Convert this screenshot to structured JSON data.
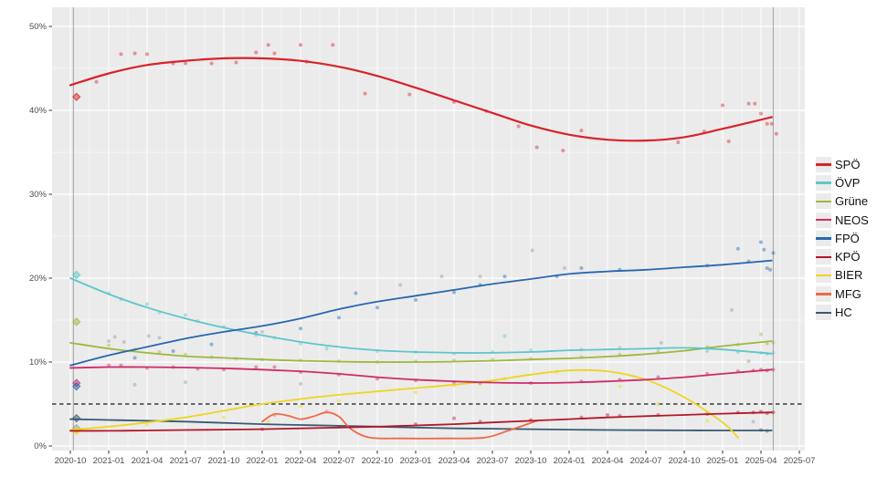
{
  "chart_data": {
    "type": "scatter-with-loess-trend",
    "title": "",
    "y_tick_labels": [
      "0%",
      "10%",
      "20%",
      "30%",
      "40%",
      "50%"
    ],
    "y_tick_values": [
      0,
      10,
      20,
      30,
      40,
      50
    ],
    "y_minor_values": [
      5,
      15,
      25,
      35,
      45
    ],
    "ylim": [
      -0.5,
      52.3
    ],
    "x_tick_labels": [
      "2020-10",
      "2021-01",
      "2021-04",
      "2021-07",
      "2021-10",
      "2022-01",
      "2022-04",
      "2022-07",
      "2022-10",
      "2023-01",
      "2023-04",
      "2023-07",
      "2023-10",
      "2024-01",
      "2024-04",
      "2024-07",
      "2024-10",
      "2025-01",
      "2025-04",
      "2025-07"
    ],
    "xlim_years": [
      2020.63,
      2025.54
    ],
    "threshold_line": {
      "value": 5,
      "style": "dashed",
      "color": "#3a3a3a"
    },
    "event_vlines": {
      "color": "#a8a8a8",
      "x_years": [
        2020.77,
        2025.33
      ]
    },
    "panel_background": "#ebebeb",
    "gridline_color": "#ffffff",
    "trend_x_years": [
      2020.75,
      2021.0,
      2021.25,
      2021.5,
      2021.75,
      2022.0,
      2022.25,
      2022.5,
      2022.75,
      2023.0,
      2023.25,
      2023.5,
      2023.75,
      2024.0,
      2024.25,
      2024.5,
      2024.75,
      2025.0,
      2025.32
    ],
    "series": [
      {
        "name": "SPÖ",
        "color": "#d8232a",
        "line_width": 2.2,
        "trend_y": [
          43.0,
          44.4,
          45.4,
          45.9,
          46.2,
          46.2,
          45.9,
          45.2,
          44.1,
          42.7,
          41.2,
          39.7,
          38.2,
          37.1,
          36.5,
          36.4,
          36.8,
          37.8,
          39.2
        ],
        "diamonds": [
          [
            2020.79,
            41.6
          ]
        ],
        "points": [
          [
            2020.92,
            43.4
          ],
          [
            2021.08,
            46.7
          ],
          [
            2021.17,
            46.8
          ],
          [
            2021.25,
            46.7
          ],
          [
            2021.42,
            45.6
          ],
          [
            2021.5,
            45.6
          ],
          [
            2021.67,
            45.6
          ],
          [
            2021.83,
            45.7
          ],
          [
            2021.96,
            46.9
          ],
          [
            2022.04,
            47.8
          ],
          [
            2022.08,
            46.8
          ],
          [
            2022.25,
            47.8
          ],
          [
            2022.29,
            45.8
          ],
          [
            2022.46,
            47.8
          ],
          [
            2022.67,
            42.0
          ],
          [
            2022.96,
            41.9
          ],
          [
            2023.25,
            41.0
          ],
          [
            2023.46,
            39.9
          ],
          [
            2023.67,
            38.1
          ],
          [
            2023.79,
            35.6
          ],
          [
            2023.96,
            35.2
          ],
          [
            2024.08,
            37.6
          ],
          [
            2024.71,
            36.2
          ],
          [
            2024.88,
            37.5
          ],
          [
            2025.0,
            40.6
          ],
          [
            2025.04,
            36.3
          ],
          [
            2025.17,
            40.8
          ],
          [
            2025.21,
            40.8
          ],
          [
            2025.25,
            39.6
          ],
          [
            2025.29,
            38.4
          ],
          [
            2025.32,
            38.4
          ],
          [
            2025.35,
            37.2
          ]
        ]
      },
      {
        "name": "ÖVP",
        "color": "#5fc6c9",
        "line_width": 1.8,
        "trend_y": [
          20.0,
          18.1,
          16.5,
          15.2,
          14.1,
          13.2,
          12.4,
          11.8,
          11.4,
          11.2,
          11.1,
          11.1,
          11.2,
          11.4,
          11.5,
          11.6,
          11.7,
          11.5,
          11.0
        ],
        "diamonds": [
          [
            2020.79,
            20.4
          ]
        ],
        "points": [
          [
            2021.0,
            18.2
          ],
          [
            2021.08,
            17.5
          ],
          [
            2021.25,
            16.9
          ],
          [
            2021.33,
            15.9
          ],
          [
            2021.5,
            15.6
          ],
          [
            2021.58,
            14.9
          ],
          [
            2021.75,
            14.2
          ],
          [
            2021.96,
            13.2
          ],
          [
            2022.08,
            12.9
          ],
          [
            2022.25,
            12.2
          ],
          [
            2022.42,
            11.6
          ],
          [
            2022.75,
            11.3
          ],
          [
            2023.0,
            11.2
          ],
          [
            2023.25,
            11.0
          ],
          [
            2023.5,
            11.2
          ],
          [
            2023.58,
            13.1
          ],
          [
            2023.75,
            11.4
          ],
          [
            2024.08,
            11.5
          ],
          [
            2024.33,
            11.7
          ],
          [
            2024.58,
            11.6
          ],
          [
            2024.9,
            11.3
          ],
          [
            2025.1,
            11.2
          ],
          [
            2025.25,
            11.1
          ],
          [
            2025.29,
            11.0
          ],
          [
            2025.33,
            11.1
          ]
        ]
      },
      {
        "name": "Grüne",
        "color": "#9fb83f",
        "line_width": 1.8,
        "trend_y": [
          12.3,
          11.6,
          11.1,
          10.7,
          10.5,
          10.3,
          10.15,
          10.05,
          10.0,
          10.0,
          10.05,
          10.15,
          10.3,
          10.45,
          10.65,
          10.95,
          11.35,
          11.9,
          12.5
        ],
        "diamonds": [
          [
            2020.79,
            14.8
          ]
        ],
        "points": [
          [
            2021.0,
            12.0
          ],
          [
            2021.17,
            11.5
          ],
          [
            2021.33,
            11.2
          ],
          [
            2021.5,
            10.9
          ],
          [
            2021.67,
            10.6
          ],
          [
            2021.83,
            10.4
          ],
          [
            2022.0,
            10.3
          ],
          [
            2022.25,
            10.2
          ],
          [
            2022.5,
            10.1
          ],
          [
            2022.75,
            10.0
          ],
          [
            2023.0,
            10.1
          ],
          [
            2023.25,
            10.2
          ],
          [
            2023.5,
            10.3
          ],
          [
            2023.75,
            10.4
          ],
          [
            2024.08,
            10.6
          ],
          [
            2024.33,
            10.9
          ],
          [
            2024.58,
            11.2
          ],
          [
            2024.9,
            11.8
          ],
          [
            2025.1,
            12.1
          ],
          [
            2025.25,
            13.3
          ],
          [
            2025.29,
            12.2
          ],
          [
            2025.33,
            12.3
          ]
        ]
      },
      {
        "name": "NEOS",
        "color": "#cf2b68",
        "line_width": 1.8,
        "trend_y": [
          9.3,
          9.4,
          9.4,
          9.35,
          9.25,
          9.1,
          8.9,
          8.6,
          8.2,
          7.9,
          7.7,
          7.55,
          7.5,
          7.55,
          7.7,
          7.9,
          8.2,
          8.6,
          9.1
        ],
        "diamonds": [
          [
            2020.79,
            7.5
          ]
        ],
        "points": [
          [
            2021.0,
            9.6
          ],
          [
            2021.08,
            9.6
          ],
          [
            2021.25,
            9.3
          ],
          [
            2021.42,
            9.4
          ],
          [
            2021.58,
            9.2
          ],
          [
            2021.75,
            9.1
          ],
          [
            2021.96,
            9.4
          ],
          [
            2022.08,
            9.4
          ],
          [
            2022.25,
            8.8
          ],
          [
            2022.5,
            8.5
          ],
          [
            2022.75,
            8.0
          ],
          [
            2023.0,
            7.8
          ],
          [
            2023.25,
            7.6
          ],
          [
            2023.42,
            7.5
          ],
          [
            2023.75,
            7.5
          ],
          [
            2024.08,
            7.7
          ],
          [
            2024.33,
            7.9
          ],
          [
            2024.58,
            8.2
          ],
          [
            2024.9,
            8.6
          ],
          [
            2025.1,
            8.9
          ],
          [
            2025.2,
            9.0
          ],
          [
            2025.25,
            9.1
          ],
          [
            2025.29,
            9.0
          ],
          [
            2025.33,
            9.1
          ]
        ]
      },
      {
        "name": "FPÖ",
        "color": "#2867ae",
        "line_width": 1.8,
        "trend_y": [
          9.6,
          10.8,
          11.8,
          12.8,
          13.6,
          14.3,
          15.2,
          16.3,
          17.2,
          17.9,
          18.6,
          19.3,
          19.9,
          20.5,
          20.8,
          21.0,
          21.3,
          21.6,
          22.1
        ],
        "diamonds": [
          [
            2020.79,
            7.1
          ]
        ],
        "points": [
          [
            2021.17,
            10.5
          ],
          [
            2021.42,
            11.3
          ],
          [
            2021.67,
            12.1
          ],
          [
            2021.96,
            13.5
          ],
          [
            2022.25,
            14.0
          ],
          [
            2022.5,
            15.3
          ],
          [
            2022.61,
            18.2
          ],
          [
            2022.75,
            16.5
          ],
          [
            2023.0,
            17.4
          ],
          [
            2023.25,
            18.3
          ],
          [
            2023.42,
            19.2
          ],
          [
            2023.58,
            20.2
          ],
          [
            2023.92,
            20.2
          ],
          [
            2024.08,
            21.2
          ],
          [
            2024.33,
            21.0
          ],
          [
            2024.9,
            21.5
          ],
          [
            2025.1,
            23.5
          ],
          [
            2025.17,
            22.0
          ],
          [
            2025.25,
            24.3
          ],
          [
            2025.27,
            23.4
          ],
          [
            2025.29,
            21.2
          ],
          [
            2025.31,
            21.0
          ],
          [
            2025.33,
            23.0
          ]
        ]
      },
      {
        "name": "KPÖ",
        "color": "#b2182b",
        "line_width": 1.8,
        "trend_y": [
          1.8,
          1.8,
          1.85,
          1.9,
          1.95,
          2.0,
          2.1,
          2.2,
          2.3,
          2.45,
          2.6,
          2.8,
          3.0,
          3.2,
          3.4,
          3.55,
          3.7,
          3.85,
          4.0
        ],
        "diamonds": [],
        "points": [
          [
            2022.0,
            2.0
          ],
          [
            2022.5,
            2.3
          ],
          [
            2023.0,
            2.6
          ],
          [
            2023.25,
            3.3
          ],
          [
            2023.42,
            2.9
          ],
          [
            2023.75,
            3.1
          ],
          [
            2024.08,
            3.4
          ],
          [
            2024.25,
            3.7
          ],
          [
            2024.33,
            3.6
          ],
          [
            2024.58,
            3.7
          ],
          [
            2024.9,
            3.8
          ],
          [
            2025.1,
            4.0
          ],
          [
            2025.2,
            4.0
          ],
          [
            2025.25,
            4.1
          ],
          [
            2025.29,
            3.9
          ],
          [
            2025.33,
            4.0
          ]
        ]
      },
      {
        "name": "BIER",
        "color": "#eed51e",
        "line_width": 1.8,
        "trend_x_years": [
          2020.75,
          2021.0,
          2021.25,
          2021.5,
          2021.75,
          2022.0,
          2022.25,
          2022.5,
          2022.75,
          2023.0,
          2023.25,
          2023.5,
          2023.75,
          2024.0,
          2024.25,
          2024.5,
          2024.75,
          2025.0,
          2025.1
        ],
        "trend_y": [
          1.9,
          2.3,
          2.8,
          3.4,
          4.2,
          5.0,
          5.6,
          6.1,
          6.5,
          6.9,
          7.3,
          7.8,
          8.5,
          9.0,
          8.9,
          7.9,
          5.8,
          2.8,
          1.0
        ],
        "diamonds": [
          [
            2020.79,
            1.8
          ]
        ],
        "points": [
          [
            2021.25,
            2.5
          ],
          [
            2021.75,
            3.4
          ],
          [
            2022.04,
            2.9
          ],
          [
            2022.25,
            4.7
          ],
          [
            2022.5,
            5.4
          ],
          [
            2023.0,
            6.4
          ],
          [
            2023.25,
            7.2
          ],
          [
            2023.42,
            7.4
          ],
          [
            2023.58,
            8.0
          ],
          [
            2023.92,
            8.8
          ],
          [
            2024.33,
            7.1
          ],
          [
            2024.58,
            5.0
          ],
          [
            2024.9,
            3.0
          ]
        ]
      },
      {
        "name": "MFG",
        "color": "#f06a46",
        "line_width": 1.8,
        "trend_x_years": [
          2022.0,
          2022.08,
          2022.17,
          2022.25,
          2022.33,
          2022.42,
          2022.5,
          2022.58,
          2022.7,
          2022.9,
          2023.2,
          2023.45,
          2023.6,
          2023.79
        ],
        "trend_y": [
          2.9,
          3.8,
          3.6,
          3.2,
          3.5,
          4.0,
          3.5,
          2.0,
          1.0,
          0.9,
          0.9,
          1.0,
          1.8,
          3.0
        ],
        "diamonds": [],
        "points": [
          [
            2022.08,
            3.7
          ],
          [
            2022.42,
            4.1
          ]
        ]
      },
      {
        "name": "HC",
        "color": "#375a73",
        "line_width": 1.8,
        "trend_y": [
          3.2,
          3.1,
          3.0,
          2.9,
          2.75,
          2.6,
          2.5,
          2.4,
          2.3,
          2.2,
          2.1,
          2.05,
          2.0,
          1.95,
          1.9,
          1.88,
          1.86,
          1.85,
          1.85
        ],
        "diamonds": [
          [
            2020.79,
            3.3
          ]
        ],
        "points": [
          [
            2025.25,
            1.9
          ],
          [
            2025.29,
            1.8
          ]
        ]
      }
    ],
    "other_points": {
      "color": "#9a9a9a",
      "points": [
        [
          2021.0,
          12.5
        ],
        [
          2021.04,
          13.0
        ],
        [
          2021.1,
          12.4
        ],
        [
          2021.26,
          13.1
        ],
        [
          2021.33,
          12.9
        ],
        [
          2021.17,
          7.3
        ],
        [
          2021.5,
          7.6
        ],
        [
          2022.0,
          13.6
        ],
        [
          2022.25,
          7.4
        ],
        [
          2022.9,
          19.2
        ],
        [
          2023.17,
          20.2
        ],
        [
          2023.42,
          20.2
        ],
        [
          2023.76,
          23.3
        ],
        [
          2023.97,
          21.2
        ],
        [
          2024.6,
          12.3
        ],
        [
          2025.06,
          16.2
        ],
        [
          2025.17,
          10.1
        ],
        [
          2025.2,
          2.9
        ]
      ],
      "diamonds": [
        [
          2020.79,
          2.1
        ]
      ]
    }
  }
}
